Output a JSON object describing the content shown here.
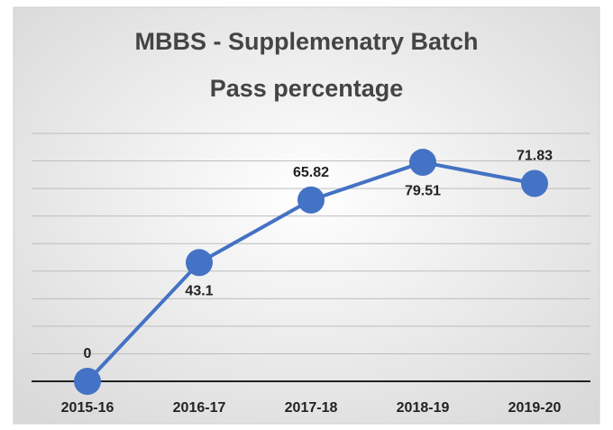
{
  "chart_data": {
    "type": "line",
    "title": "MBBS - Supplemenatry Batch",
    "subtitle": "Pass percentage",
    "categories": [
      "2015-16",
      "2016-17",
      "2017-18",
      "2018-19",
      "2019-20"
    ],
    "values": [
      0,
      43.1,
      65.82,
      79.51,
      71.83
    ],
    "color": "#4472c4",
    "ylim": [
      0,
      90
    ],
    "yticks": [
      0,
      10,
      20,
      30,
      40,
      50,
      60,
      70,
      80,
      90
    ],
    "grid": true
  }
}
